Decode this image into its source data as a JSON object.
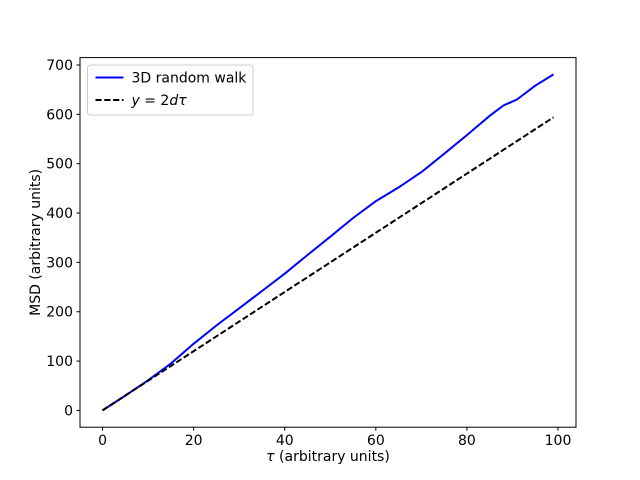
{
  "figure": {
    "kind": "matplotlib-line-plot",
    "background_color": "#ffffff",
    "axes_edge_color": "#000000"
  },
  "chart_data": {
    "type": "line",
    "title": "",
    "xlabel": "τ (arbitrary units)",
    "ylabel": "MSD (arbitrary units)",
    "xlim": [
      -4.95,
      103.95
    ],
    "ylim": [
      -34,
      715
    ],
    "xticks": [
      0,
      20,
      40,
      60,
      80,
      100
    ],
    "yticks": [
      0,
      100,
      200,
      300,
      400,
      500,
      600,
      700
    ],
    "grid": false,
    "legend": {
      "position": "upper left",
      "border_color": "#cccccc",
      "background_color": "#ffffff"
    },
    "series": [
      {
        "name": "3D random walk",
        "color": "#0000ff",
        "line_style": "solid",
        "x": [
          0,
          5,
          10,
          15,
          20,
          25,
          30,
          35,
          40,
          45,
          50,
          55,
          60,
          65,
          70,
          75,
          80,
          85,
          88,
          91,
          95,
          99
        ],
        "y": [
          0,
          30,
          61,
          95,
          135,
          172,
          207,
          242,
          277,
          315,
          352,
          390,
          424,
          452,
          483,
          520,
          558,
          597,
          618,
          630,
          658,
          681
        ]
      },
      {
        "name": "y = 2dτ",
        "math_label": true,
        "color": "#000000",
        "line_style": "dashed",
        "x": [
          0,
          99
        ],
        "y": [
          0,
          594
        ]
      }
    ]
  }
}
